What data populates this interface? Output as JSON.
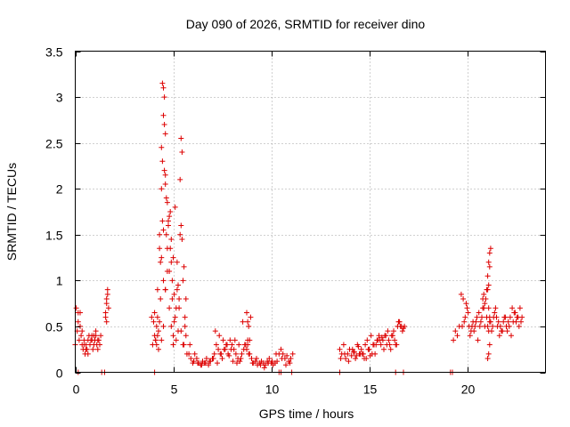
{
  "chart_data": {
    "type": "scatter",
    "title": "Day 090 of 2026, SRMTID for receiver dino",
    "xlabel": "GPS time / hours",
    "ylabel": "SRMTID / TECUs",
    "xlim": [
      0,
      24
    ],
    "ylim": [
      0,
      3.5
    ],
    "x_ticks": [
      0,
      5,
      10,
      15,
      20
    ],
    "x_tick_labels": [
      "0",
      "5",
      "10",
      "15",
      "20"
    ],
    "y_ticks": [
      0,
      0.5,
      1,
      1.5,
      2,
      2.5,
      3,
      3.5
    ],
    "y_tick_labels": [
      "0",
      "0.5",
      "1",
      "1.5",
      "2",
      "2.5",
      "3",
      "3.5"
    ],
    "grid": true,
    "marker": "plus",
    "color": "#dd0000",
    "series": [
      {
        "name": "SRMTID",
        "x": [
          0.0,
          0.05,
          0.1,
          0.15,
          0.2,
          0.25,
          0.3,
          0.35,
          0.4,
          0.45,
          0.5,
          0.55,
          0.6,
          0.65,
          0.7,
          0.75,
          0.8,
          0.85,
          0.9,
          0.95,
          1.0,
          1.05,
          1.1,
          1.15,
          1.2,
          1.25,
          1.3,
          0.15,
          0.25,
          0.35,
          0.45,
          0.55,
          0.65,
          0.75,
          0.85,
          0.95,
          1.05,
          1.15,
          1.55,
          1.6,
          1.65,
          1.7,
          1.55,
          1.6,
          1.65,
          1.6,
          3.9,
          4.0,
          4.1,
          4.2,
          4.3,
          4.4,
          4.5,
          4.6,
          4.7,
          4.8,
          4.9,
          5.0,
          5.1,
          5.2,
          5.3,
          5.4,
          5.5,
          5.6,
          5.7,
          4.05,
          4.15,
          4.25,
          4.35,
          4.45,
          4.55,
          4.65,
          4.75,
          4.85,
          4.95,
          5.05,
          5.15,
          5.25,
          5.35,
          5.45,
          5.55,
          5.65,
          4.2,
          4.3,
          4.4,
          4.5,
          4.6,
          4.7,
          4.8,
          4.9,
          5.0,
          5.1,
          5.2,
          5.3,
          5.4,
          5.5,
          5.6,
          4.45,
          4.5,
          4.55,
          4.5,
          4.6,
          4.4,
          4.45,
          4.55,
          4.6,
          5.4,
          5.45,
          5.35,
          4.35,
          4.65,
          4.75,
          4.85,
          4.95,
          5.05,
          5.15,
          5.25,
          5.55,
          5.65,
          4.1,
          4.2,
          4.3,
          4.4,
          4.5,
          4.6,
          4.7,
          4.8,
          4.9,
          5.0,
          3.95,
          4.05,
          4.15,
          4.25,
          5.8,
          5.9,
          6.0,
          6.1,
          6.2,
          6.3,
          6.4,
          6.5,
          6.6,
          6.7,
          6.8,
          6.9,
          7.0,
          7.1,
          7.2,
          7.3,
          7.4,
          7.5,
          7.6,
          7.7,
          7.8,
          7.9,
          8.0,
          8.1,
          8.2,
          8.3,
          8.4,
          8.5,
          8.6,
          8.7,
          8.8,
          8.9,
          9.0,
          9.1,
          9.2,
          9.3,
          9.4,
          9.5,
          9.6,
          9.7,
          9.8,
          9.9,
          10.0,
          10.1,
          10.2,
          10.3,
          10.4,
          10.5,
          10.6,
          10.7,
          10.8,
          10.9,
          11.0,
          11.1,
          5.85,
          6.05,
          6.25,
          6.45,
          6.65,
          6.85,
          7.05,
          7.25,
          7.45,
          7.65,
          7.85,
          8.05,
          8.25,
          8.45,
          8.65,
          8.85,
          9.05,
          9.25,
          9.45,
          9.65,
          9.85,
          10.05,
          10.25,
          10.55,
          10.75,
          10.95,
          7.15,
          7.35,
          7.55,
          7.75,
          7.95,
          8.15,
          8.35,
          8.55,
          8.75,
          8.95,
          8.8,
          8.85,
          8.9,
          8.75,
          8.8,
          13.5,
          13.6,
          13.7,
          13.8,
          13.9,
          14.0,
          14.1,
          14.2,
          14.3,
          14.4,
          14.5,
          14.6,
          14.7,
          14.8,
          14.9,
          15.0,
          15.1,
          15.2,
          15.3,
          15.4,
          15.5,
          15.6,
          15.7,
          15.8,
          15.9,
          16.0,
          16.1,
          16.2,
          16.3,
          16.4,
          16.5,
          16.6,
          16.7,
          16.8,
          13.55,
          13.75,
          13.95,
          14.15,
          14.35,
          14.55,
          14.75,
          14.95,
          15.15,
          15.35,
          15.55,
          15.75,
          15.95,
          16.15,
          16.35,
          14.25,
          14.45,
          14.65,
          14.85,
          15.05,
          15.25,
          15.45,
          15.65,
          15.85,
          16.05,
          16.25,
          16.45,
          16.55,
          16.65,
          16.75,
          19.3,
          19.4,
          19.5,
          19.6,
          19.7,
          19.8,
          19.9,
          20.0,
          20.1,
          20.2,
          20.3,
          20.4,
          20.5,
          20.6,
          20.7,
          20.8,
          20.9,
          21.0,
          21.1,
          21.2,
          21.3,
          21.4,
          21.5,
          21.6,
          21.7,
          21.8,
          21.9,
          22.0,
          22.1,
          22.2,
          22.3,
          22.4,
          22.5,
          22.6,
          22.7,
          22.8,
          19.75,
          19.85,
          19.95,
          20.05,
          20.15,
          20.25,
          20.35,
          20.45,
          20.55,
          20.65,
          20.75,
          20.85,
          20.95,
          21.05,
          21.15,
          21.25,
          21.35,
          21.45,
          21.55,
          21.65,
          21.75,
          21.85,
          21.95,
          22.05,
          22.15,
          22.25,
          22.35,
          22.45,
          22.55,
          22.65,
          22.75,
          21.0,
          21.05,
          21.1,
          21.15,
          21.2,
          21.05,
          21.1,
          21.15,
          21.1,
          21.15,
          21.1,
          21.05,
          21.15,
          20.8,
          20.85,
          20.9,
          0.15,
          1.35,
          1.5,
          4.05,
          10.4,
          10.5,
          11.05,
          13.5,
          16.35,
          16.75,
          19.15,
          19.25
        ],
        "y": [
          0.3,
          0.7,
          0.45,
          0.65,
          0.35,
          0.5,
          0.4,
          0.3,
          0.25,
          0.35,
          0.2,
          0.3,
          0.25,
          0.35,
          0.4,
          0.3,
          0.35,
          0.4,
          0.25,
          0.3,
          0.35,
          0.4,
          0.3,
          0.25,
          0.35,
          0.3,
          0.4,
          0.55,
          0.65,
          0.45,
          0.3,
          0.25,
          0.2,
          0.3,
          0.35,
          0.4,
          0.45,
          0.35,
          0.65,
          0.75,
          0.85,
          0.7,
          0.6,
          0.8,
          0.9,
          0.55,
          0.6,
          0.55,
          0.35,
          0.9,
          1.5,
          2.0,
          1.55,
          0.9,
          1.1,
          0.7,
          0.5,
          0.3,
          0.6,
          1.2,
          0.8,
          0.45,
          0.3,
          0.5,
          0.2,
          0.4,
          0.3,
          0.25,
          1.2,
          1.65,
          2.7,
          1.9,
          1.65,
          1.35,
          1.0,
          0.85,
          0.7,
          0.95,
          1.5,
          1.45,
          1.15,
          0.8,
          0.4,
          1.35,
          1.25,
          1.0,
          2.15,
          1.85,
          1.7,
          1.45,
          1.25,
          1.8,
          0.9,
          0.7,
          1.6,
          1.0,
          0.6,
          3.15,
          3.1,
          3.0,
          2.8,
          2.6,
          2.45,
          2.3,
          2.2,
          2.05,
          2.55,
          2.4,
          2.1,
          0.8,
          1.5,
          1.6,
          1.75,
          0.8,
          0.55,
          0.35,
          0.45,
          0.3,
          0.4,
          0.35,
          0.6,
          0.55,
          0.35,
          0.5,
          0.9,
          1.35,
          1.1,
          1.2,
          0.4,
          0.3,
          0.65,
          0.5,
          0.45,
          0.2,
          0.15,
          0.1,
          0.2,
          0.15,
          0.1,
          0.08,
          0.12,
          0.1,
          0.15,
          0.08,
          0.12,
          0.15,
          0.2,
          0.3,
          0.25,
          0.2,
          0.15,
          0.25,
          0.3,
          0.2,
          0.35,
          0.3,
          0.25,
          0.2,
          0.15,
          0.12,
          0.2,
          0.25,
          0.3,
          0.35,
          0.2,
          0.15,
          0.1,
          0.12,
          0.08,
          0.1,
          0.12,
          0.1,
          0.08,
          0.12,
          0.15,
          0.1,
          0.08,
          0.1,
          0.12,
          0.2,
          0.25,
          0.2,
          0.15,
          0.18,
          0.12,
          0.15,
          0.2,
          0.3,
          0.12,
          0.1,
          0.08,
          0.1,
          0.12,
          0.15,
          0.1,
          0.2,
          0.25,
          0.18,
          0.12,
          0.1,
          0.15,
          0.3,
          0.2,
          0.1,
          0.15,
          0.08,
          0.05,
          0.1,
          0.12,
          0.2,
          0.15,
          0.08,
          0.1,
          0.45,
          0.4,
          0.35,
          0.3,
          0.25,
          0.35,
          0.3,
          0.55,
          0.65,
          0.6,
          0.55,
          0.5,
          0.35,
          0.25,
          0.3,
          0.25,
          0.2,
          0.3,
          0.15,
          0.2,
          0.25,
          0.18,
          0.22,
          0.15,
          0.3,
          0.2,
          0.25,
          0.2,
          0.3,
          0.35,
          0.25,
          0.4,
          0.3,
          0.2,
          0.35,
          0.4,
          0.3,
          0.35,
          0.4,
          0.3,
          0.35,
          0.25,
          0.4,
          0.35,
          0.3,
          0.55,
          0.5,
          0.45,
          0.5,
          0.15,
          0.2,
          0.12,
          0.25,
          0.18,
          0.2,
          0.15,
          0.25,
          0.2,
          0.3,
          0.35,
          0.25,
          0.45,
          0.4,
          0.3,
          0.22,
          0.28,
          0.2,
          0.15,
          0.18,
          0.3,
          0.35,
          0.38,
          0.4,
          0.3,
          0.45,
          0.5,
          0.55,
          0.5,
          0.48,
          0.35,
          0.45,
          0.4,
          0.5,
          0.85,
          0.8,
          0.6,
          0.7,
          0.5,
          0.45,
          0.55,
          0.5,
          0.6,
          0.65,
          0.55,
          0.7,
          0.5,
          0.6,
          0.45,
          0.55,
          0.5,
          0.65,
          0.6,
          0.55,
          0.5,
          0.45,
          0.6,
          0.5,
          0.55,
          0.6,
          0.7,
          0.65,
          0.55,
          0.6,
          0.7,
          0.6,
          0.5,
          0.55,
          0.75,
          0.65,
          0.4,
          0.5,
          0.45,
          0.55,
          0.35,
          0.5,
          0.6,
          0.7,
          0.8,
          0.5,
          0.55,
          0.45,
          0.6,
          0.7,
          0.5,
          0.4,
          0.45,
          0.55,
          0.6,
          0.45,
          0.5,
          0.4,
          0.55,
          0.65,
          0.6,
          0.5,
          0.55,
          0.9,
          1.05,
          1.2,
          1.3,
          1.35,
          0.9,
          0.95,
          1.15,
          0.7,
          0.6,
          0.2,
          0.15,
          0.3,
          0.8,
          0.85,
          0.75,
          0.0,
          0.0,
          0.0,
          0.0,
          0.0,
          0.0,
          0.0,
          0.0,
          0.0,
          0.0,
          0.0,
          0.0
        ]
      }
    ]
  }
}
